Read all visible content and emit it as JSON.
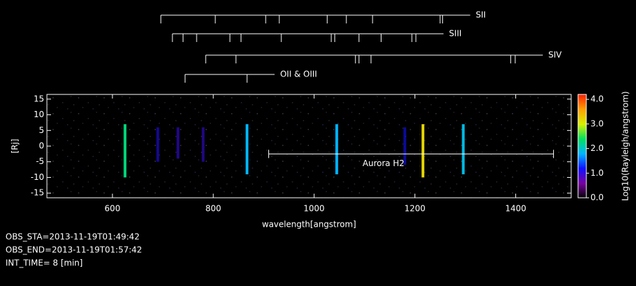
{
  "chart_data": {
    "type": "spectrogram",
    "x_label": "wavelength[angstrom]",
    "y_label": "[Rj]",
    "xlim": [
      470,
      1510
    ],
    "xticks": [
      600,
      800,
      1000,
      1200,
      1400
    ],
    "ylim": [
      -16.5,
      16.5
    ],
    "yticks": [
      -15,
      -10,
      -5,
      0,
      5,
      10,
      15
    ],
    "colorbar": {
      "label": "Log10(Rayleigh/angstrom)",
      "clim": [
        0,
        4.2
      ],
      "ticks": [
        {
          "value": 0,
          "label": "0.0"
        },
        {
          "value": 1,
          "label": "1.0"
        },
        {
          "value": 2,
          "label": "2.0"
        },
        {
          "value": 3,
          "label": "3.0"
        },
        {
          "value": 4,
          "label": "4.0"
        }
      ],
      "colormap": [
        "#000000",
        "#7a00a0",
        "#1010ff",
        "#00b4ff",
        "#00e060",
        "#d8f000",
        "#ffa000",
        "#ff2000"
      ]
    },
    "emission": [
      {
        "wavelength": 625,
        "ymin": -10,
        "ymax": 7,
        "intensity": 2.3
      },
      {
        "wavelength": 690,
        "ymin": -5,
        "ymax": 6,
        "intensity": 1.1
      },
      {
        "wavelength": 730,
        "ymin": -4,
        "ymax": 6,
        "intensity": 1.0
      },
      {
        "wavelength": 780,
        "ymin": -5,
        "ymax": 6,
        "intensity": 1.0
      },
      {
        "wavelength": 867,
        "ymin": -9,
        "ymax": 7,
        "intensity": 1.8
      },
      {
        "wavelength": 1045,
        "ymin": -9,
        "ymax": 7,
        "intensity": 1.8
      },
      {
        "wavelength": 1180,
        "ymin": -6,
        "ymax": 6,
        "intensity": 1.2
      },
      {
        "wavelength": 1216,
        "ymin": -10,
        "ymax": 7,
        "intensity": 3.2
      },
      {
        "wavelength": 1296,
        "ymin": -9,
        "ymax": 7,
        "intensity": 1.9
      }
    ],
    "line_sets": [
      {
        "name": "SII",
        "wavelengths": [
          696,
          804,
          904,
          931,
          1026,
          1064,
          1116,
          1250,
          1255
        ]
      },
      {
        "name": "SIII",
        "wavelengths": [
          719,
          740,
          767,
          833,
          855,
          935,
          1034,
          1041,
          1089,
          1133,
          1194,
          1202
        ]
      },
      {
        "name": "SIV",
        "wavelengths": [
          785,
          845,
          1082,
          1089,
          1113,
          1390,
          1399
        ]
      },
      {
        "name": "OII & OIII",
        "wavelengths": [
          744,
          867
        ]
      }
    ],
    "aurora": {
      "label": "Aurora H2",
      "range": [
        910,
        1475
      ],
      "y": -2.5
    },
    "info": [
      "OBS_STA=2013-11-19T01:49:42",
      "OBS_END=2013-11-19T01:57:42",
      "INT_TIME= 8 [min]"
    ]
  }
}
